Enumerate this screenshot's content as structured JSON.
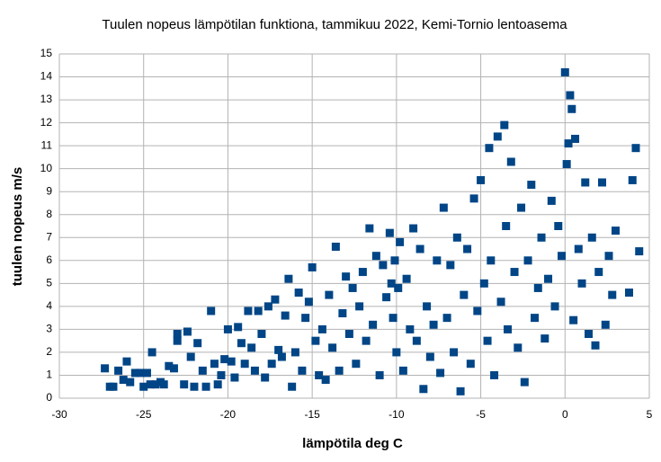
{
  "chart_data": {
    "type": "scatter",
    "title": "Tuulen nopeus lämpötilan funktiona, tammikuu 2022, Kemi-Tornio lentoasema",
    "x_label": "lämpötila deg C",
    "y_label": "tuulen nopeus m/s",
    "color": "#004586",
    "grid": true,
    "xlim": [
      -30,
      5
    ],
    "xticks": [
      -30,
      -25,
      -20,
      -15,
      -10,
      -5,
      0,
      5
    ],
    "ylim": [
      0,
      15
    ],
    "yticks": [
      0,
      1,
      2,
      3,
      4,
      5,
      6,
      7,
      8,
      9,
      10,
      11,
      12,
      13,
      14,
      15
    ],
    "x": [
      -27.3,
      -27,
      -26.8,
      -26.5,
      -26.2,
      -26,
      -25.8,
      -25.5,
      -25.2,
      -25,
      -24.8,
      -24.6,
      -24.5,
      -24.3,
      -24,
      -23.8,
      -23.5,
      -23.2,
      -23,
      -23,
      -22.6,
      -22.4,
      -22.2,
      -22,
      -21.8,
      -21.5,
      -21.3,
      -21,
      -20.8,
      -20.6,
      -20.4,
      -20.2,
      -20,
      -19.8,
      -19.6,
      -19.4,
      -19.2,
      -19,
      -18.8,
      -18.6,
      -18.4,
      -18.2,
      -18,
      -17.8,
      -17.6,
      -17.4,
      -17.2,
      -17,
      -16.8,
      -16.6,
      -16.4,
      -16.2,
      -16,
      -15.8,
      -15.6,
      -15.4,
      -15.2,
      -15,
      -14.8,
      -14.6,
      -14.4,
      -14.2,
      -14,
      -13.8,
      -13.6,
      -13.4,
      -13.2,
      -13,
      -12.8,
      -12.6,
      -12.4,
      -12.2,
      -12,
      -11.8,
      -11.6,
      -11.4,
      -11.2,
      -11,
      -10.8,
      -10.6,
      -10.4,
      -10.3,
      -10.2,
      -10.1,
      -10,
      -9.9,
      -9.8,
      -9.6,
      -9.4,
      -9.2,
      -9,
      -8.8,
      -8.6,
      -8.4,
      -8.2,
      -8,
      -7.8,
      -7.6,
      -7.4,
      -7.2,
      -7,
      -6.8,
      -6.6,
      -6.4,
      -6.2,
      -6,
      -5.8,
      -5.6,
      -5.4,
      -5.2,
      -5,
      -4.8,
      -4.6,
      -4.5,
      -4.4,
      -4.2,
      -4,
      -3.8,
      -3.6,
      -3.5,
      -3.4,
      -3.2,
      -3,
      -2.8,
      -2.6,
      -2.4,
      -2.2,
      -2,
      -1.8,
      -1.6,
      -1.4,
      -1.2,
      -1,
      -0.8,
      -0.6,
      -0.4,
      -0.2,
      0,
      0.1,
      0.2,
      0.3,
      0.4,
      0.5,
      0.6,
      0.8,
      1,
      1.2,
      1.4,
      1.6,
      1.8,
      2,
      2.2,
      2.4,
      2.6,
      2.8,
      3,
      3.8,
      4,
      4.2,
      4.4
    ],
    "values": [
      1.3,
      0.5,
      0.5,
      1.2,
      0.8,
      1.6,
      0.7,
      1.1,
      1.1,
      0.5,
      1.1,
      0.6,
      2.0,
      0.6,
      0.7,
      0.6,
      1.4,
      1.3,
      2.8,
      2.5,
      0.6,
      2.9,
      1.8,
      0.5,
      2.4,
      1.2,
      0.5,
      3.8,
      1.5,
      0.6,
      1.0,
      1.7,
      3.0,
      1.6,
      0.9,
      3.1,
      2.4,
      1.5,
      3.8,
      2.2,
      1.2,
      3.8,
      2.8,
      0.9,
      4.0,
      1.5,
      4.3,
      2.1,
      1.8,
      3.6,
      5.2,
      0.5,
      2.0,
      4.6,
      1.2,
      3.5,
      4.2,
      5.7,
      2.5,
      1.0,
      3.0,
      0.8,
      4.5,
      2.2,
      6.6,
      1.2,
      3.7,
      5.3,
      2.8,
      4.8,
      1.5,
      4.0,
      5.5,
      2.5,
      7.4,
      3.2,
      6.2,
      1.0,
      5.8,
      4.4,
      7.2,
      5.0,
      3.5,
      6.0,
      2.0,
      4.8,
      6.8,
      1.2,
      5.2,
      3.0,
      7.4,
      2.5,
      6.5,
      0.4,
      4.0,
      1.8,
      3.2,
      6.0,
      1.1,
      8.3,
      3.5,
      5.8,
      2.0,
      7.0,
      0.3,
      4.5,
      6.5,
      1.5,
      8.7,
      3.8,
      9.5,
      5.0,
      2.5,
      10.9,
      6.0,
      1.0,
      11.4,
      4.2,
      11.9,
      7.5,
      3.0,
      10.3,
      5.5,
      2.2,
      8.3,
      0.7,
      6.0,
      9.3,
      3.5,
      4.8,
      7.0,
      2.6,
      5.2,
      8.6,
      4.0,
      7.5,
      6.2,
      14.2,
      10.2,
      11.1,
      13.2,
      12.6,
      3.4,
      11.3,
      6.5,
      5.0,
      9.4,
      2.8,
      7.0,
      2.3,
      5.5,
      9.4,
      3.2,
      6.2,
      4.5,
      7.3,
      4.6,
      9.5,
      10.9,
      6.4
    ]
  }
}
